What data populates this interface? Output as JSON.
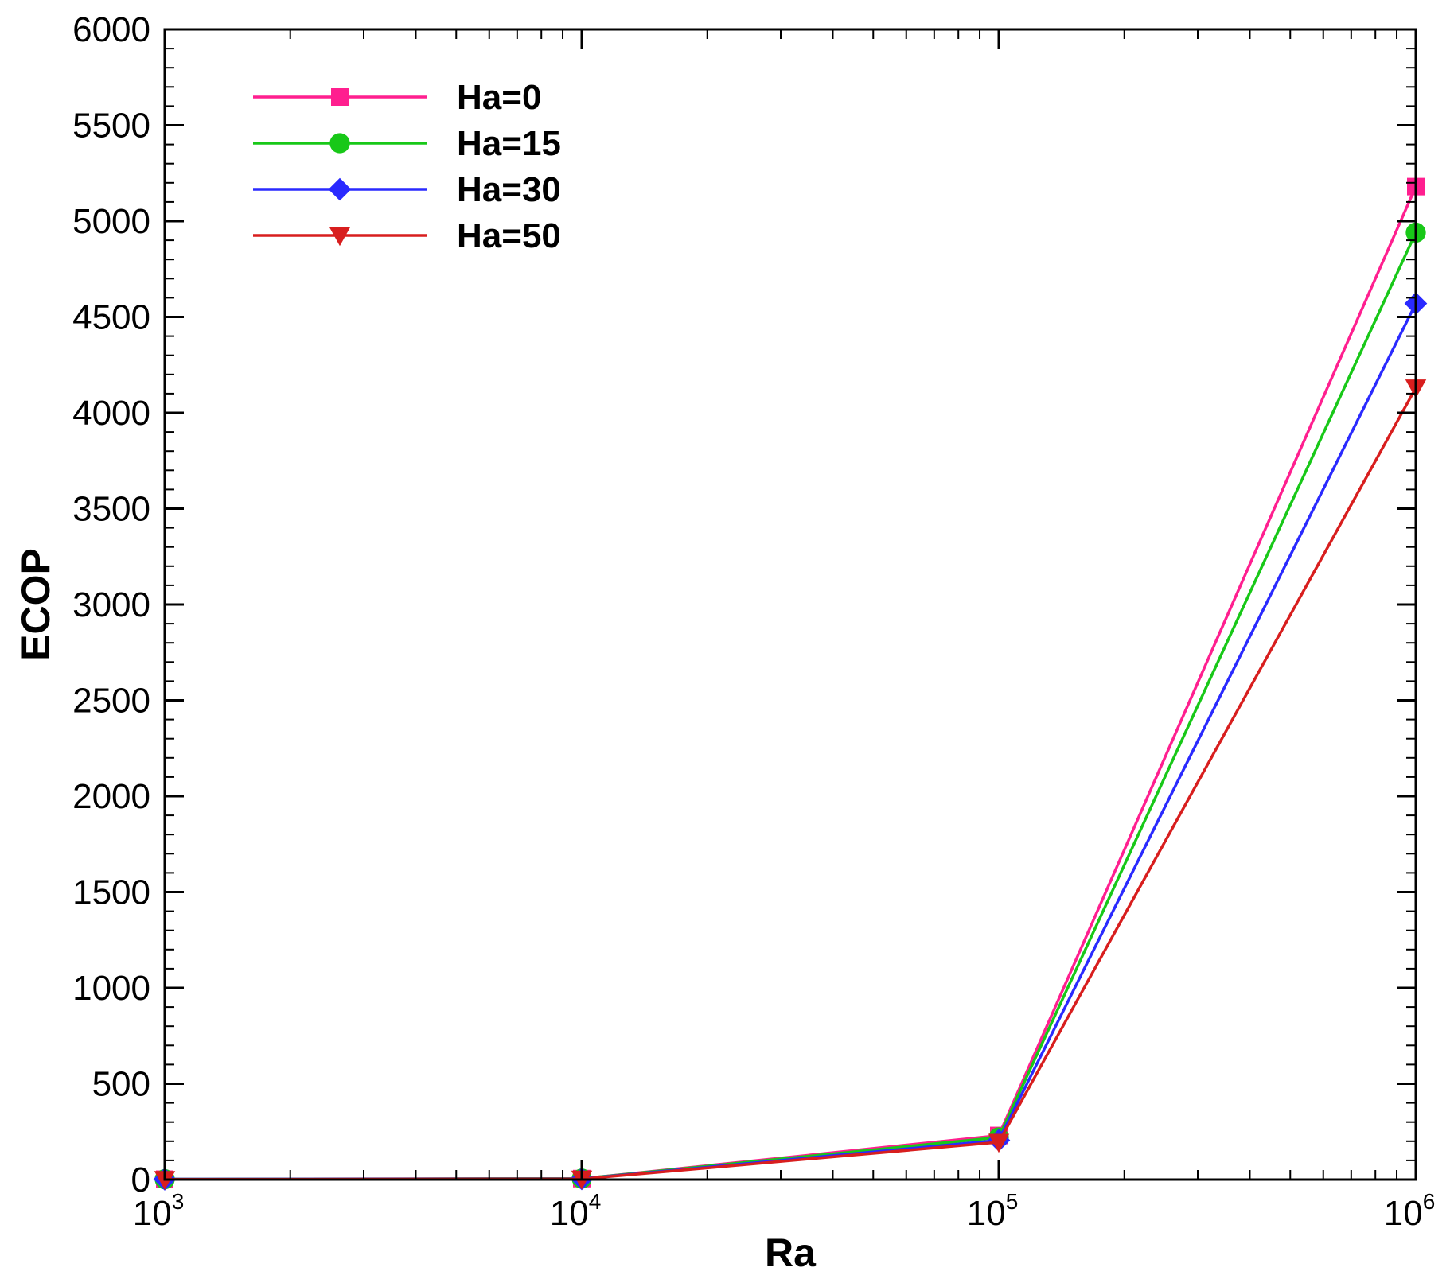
{
  "chart_data": {
    "type": "line",
    "xlabel": "Ra",
    "ylabel": "ECOP",
    "xscale": "log",
    "xlim": [
      1000,
      1000000
    ],
    "ylim": [
      0,
      6000
    ],
    "x": [
      1000,
      10000,
      100000,
      1000000
    ],
    "x_tick_labels": [
      {
        "value": 1000,
        "base": "10",
        "exp": "3"
      },
      {
        "value": 10000,
        "base": "10",
        "exp": "4"
      },
      {
        "value": 100000,
        "base": "10",
        "exp": "5"
      },
      {
        "value": 1000000,
        "base": "10",
        "exp": "6"
      }
    ],
    "y_ticks": [
      0,
      500,
      1000,
      1500,
      2000,
      2500,
      3000,
      3500,
      4000,
      4500,
      5000,
      5500,
      6000
    ],
    "y_tick_labels": [
      "0",
      "500",
      "1000",
      "1500",
      "2000",
      "2500",
      "3000",
      "3500",
      "4000",
      "4500",
      "5000",
      "5500",
      "6000"
    ],
    "legend_position": "top-left",
    "grid": false,
    "series": [
      {
        "name": "Ha=0",
        "color": "#ff1f8f",
        "marker": "square",
        "values": [
          2,
          5,
          230,
          5180
        ]
      },
      {
        "name": "Ha=15",
        "color": "#18c818",
        "marker": "circle",
        "values": [
          2,
          5,
          220,
          4940
        ]
      },
      {
        "name": "Ha=30",
        "color": "#2a2aff",
        "marker": "diamond",
        "values": [
          2,
          4,
          205,
          4570
        ]
      },
      {
        "name": "Ha=50",
        "color": "#d81e1e",
        "marker": "triangle-down",
        "values": [
          1,
          3,
          195,
          4130
        ]
      }
    ]
  }
}
